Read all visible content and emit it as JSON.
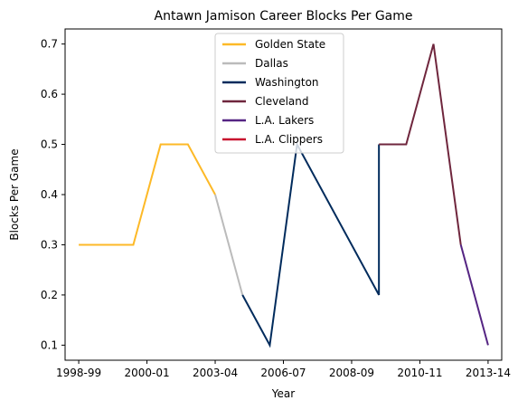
{
  "chart_data": {
    "type": "line",
    "title": "Antawn Jamison Career Blocks Per Game",
    "xlabel": "Year",
    "ylabel": "Blocks Per Game",
    "x_ticks": [
      "1998-99",
      "2000-01",
      "2003-04",
      "2006-07",
      "2008-09",
      "2010-11",
      "2013-14"
    ],
    "y_ticks": [
      "0.1",
      "0.2",
      "0.3",
      "0.4",
      "0.5",
      "0.6",
      "0.7"
    ],
    "ylim": [
      0.07,
      0.73
    ],
    "xlim": [
      -0.5,
      15.5
    ],
    "grid": false,
    "legend_position": "top-center",
    "series": [
      {
        "name": "Golden State",
        "color": "#FDB927",
        "x": [
          0,
          1,
          2,
          3,
          4,
          5
        ],
        "y": [
          0.3,
          0.3,
          0.3,
          0.5,
          0.5,
          0.4
        ]
      },
      {
        "name": "Dallas",
        "color": "#BBBBBB",
        "x": [
          5,
          6
        ],
        "y": [
          0.4,
          0.2
        ]
      },
      {
        "name": "Washington",
        "color": "#002B5C",
        "x": [
          6,
          7,
          8,
          11,
          11
        ],
        "y": [
          0.2,
          0.1,
          0.5,
          0.2,
          0.5
        ]
      },
      {
        "name": "Cleveland",
        "color": "#6F263D",
        "x": [
          11,
          12,
          13,
          14
        ],
        "y": [
          0.5,
          0.5,
          0.7,
          0.3
        ]
      },
      {
        "name": "L.A. Lakers",
        "color": "#552583",
        "x": [
          14,
          15
        ],
        "y": [
          0.3,
          0.1
        ]
      },
      {
        "name": "L.A. Clippers",
        "color": "#C8102E",
        "x": [],
        "y": []
      }
    ]
  }
}
